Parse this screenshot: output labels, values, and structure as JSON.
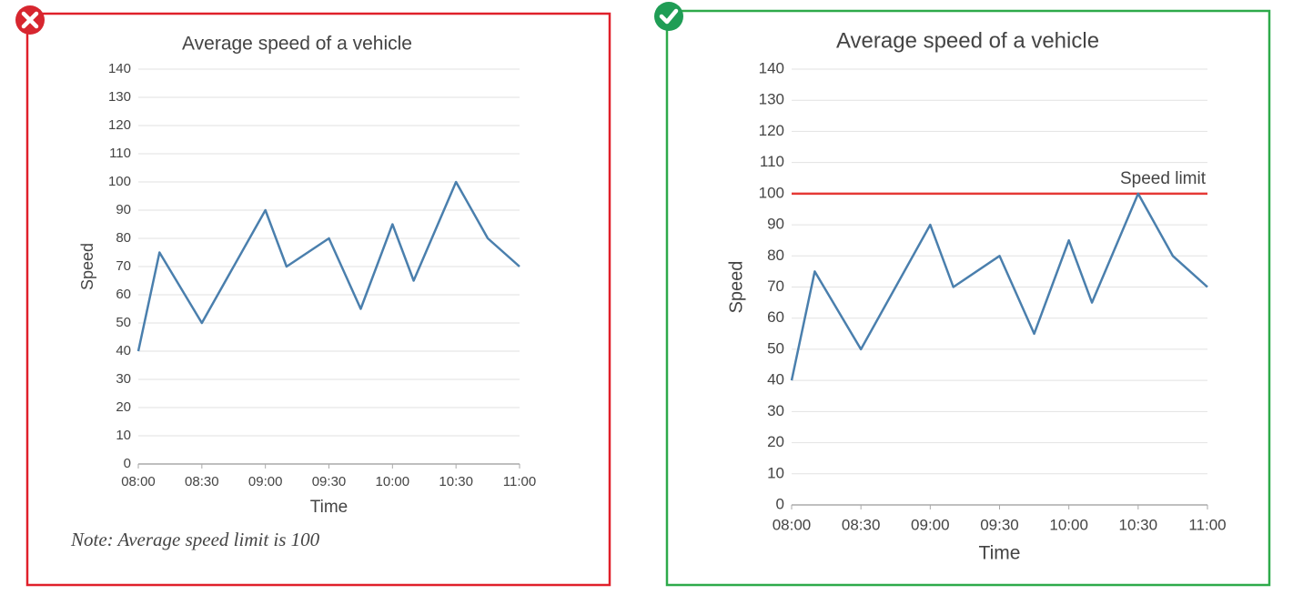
{
  "chart_data": [
    {
      "type": "line",
      "title": "Average speed of a vehicle",
      "x_label": "Time",
      "y_label": "Speed",
      "x": [
        "08:00",
        "08:10",
        "08:30",
        "09:00",
        "09:10",
        "09:30",
        "09:45",
        "10:00",
        "10:10",
        "10:30",
        "10:45",
        "11:00"
      ],
      "values": [
        40,
        75,
        50,
        90,
        70,
        80,
        55,
        85,
        65,
        100,
        80,
        70
      ],
      "color": "#4a7fad",
      "xlim": [
        "08:00",
        "11:00"
      ],
      "xticks": [
        "08:00",
        "08:30",
        "09:00",
        "09:30",
        "10:00",
        "10:30",
        "11:00"
      ],
      "ylim": [
        0,
        140
      ],
      "yticks": [
        0,
        10,
        20,
        30,
        40,
        50,
        60,
        70,
        80,
        90,
        100,
        110,
        120,
        130,
        140
      ],
      "grid": true,
      "annotation": "Note: Average speed limit is 100"
    },
    {
      "type": "line",
      "title": "Average speed of a vehicle",
      "x_label": "Time",
      "y_label": "Speed",
      "x": [
        "08:00",
        "08:10",
        "08:30",
        "09:00",
        "09:10",
        "09:30",
        "09:45",
        "10:00",
        "10:10",
        "10:30",
        "10:45",
        "11:00"
      ],
      "values": [
        40,
        75,
        50,
        90,
        70,
        80,
        55,
        85,
        65,
        100,
        80,
        70
      ],
      "color": "#4a7fad",
      "xlim": [
        "08:00",
        "11:00"
      ],
      "xticks": [
        "08:00",
        "08:30",
        "09:00",
        "09:30",
        "10:00",
        "10:30",
        "11:00"
      ],
      "ylim": [
        0,
        140
      ],
      "yticks": [
        0,
        10,
        20,
        30,
        40,
        50,
        60,
        70,
        80,
        90,
        100,
        110,
        120,
        130,
        140
      ],
      "grid": true,
      "reference_line": {
        "value": 100,
        "label": "Speed limit",
        "color": "#e53935"
      }
    }
  ]
}
